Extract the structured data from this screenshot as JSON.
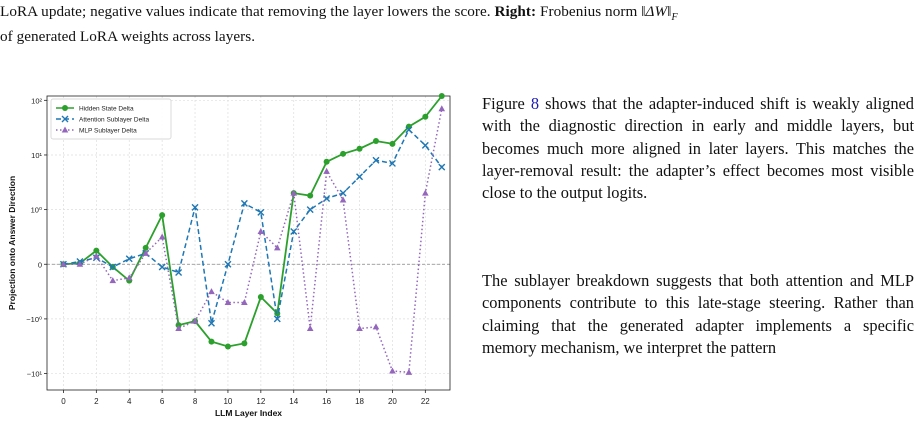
{
  "caption": {
    "line1_text": "LoRA update; negative values indicate that removing the layer lowers the score.",
    "right_label": "Right:",
    "line1_tail": "Frobenius norm",
    "norm_symbol": "‖ΔW‖",
    "norm_subscript": "F",
    "line2": "of generated LoRA weights across layers."
  },
  "body": {
    "para1_prefix": "Figure",
    "para1_ref": "8",
    "para1_rest": "shows that the adapter-induced shift is weakly aligned with the diagnostic direction in early and middle layers, but becomes much more aligned in later layers. This matches the layer-removal result: the adapter’s effect becomes most visible close to the output logits.",
    "para2": "The sublayer breakdown suggests that both attention and MLP components contribute to this late-stage steering. Rather than claiming that the generated adapter implements a specific memory mechanism, we interpret the pattern"
  },
  "colors": {
    "hidden": "#2ca02c",
    "attention": "#1f77b4",
    "mlp": "#9467bd"
  },
  "chart_data": {
    "type": "line",
    "xlabel": "LLM Layer Index",
    "ylabel": "Projection onto Answer Direction",
    "yscale": "symlog",
    "ylim": [
      -20,
      120
    ],
    "xlim": [
      -1,
      23.5
    ],
    "x_ticks": [
      0,
      2,
      4,
      6,
      8,
      10,
      12,
      14,
      16,
      18,
      20,
      22
    ],
    "y_ticks": [
      {
        "value": 100,
        "label": "10²"
      },
      {
        "value": 10,
        "label": "10¹"
      },
      {
        "value": 1,
        "label": "10⁰"
      },
      {
        "value": 0,
        "label": "0"
      },
      {
        "value": -1,
        "label": "−10⁰"
      },
      {
        "value": -10,
        "label": "−10¹"
      }
    ],
    "grid": true,
    "zero_line": true,
    "legend_position": "top-left",
    "x": [
      0,
      1,
      2,
      3,
      4,
      5,
      6,
      7,
      8,
      9,
      10,
      11,
      12,
      13,
      14,
      15,
      16,
      17,
      18,
      19,
      20,
      21,
      22,
      23
    ],
    "series": [
      {
        "name": "Hidden State Delta",
        "marker": "circle",
        "linestyle": "solid",
        "values": [
          0,
          0.02,
          0.25,
          -0.05,
          -0.3,
          0.3,
          0.9,
          -1.3,
          -1.1,
          -2.6,
          -3.2,
          -2.8,
          -0.6,
          -0.9,
          2.0,
          1.8,
          7.5,
          10.5,
          13,
          18,
          16,
          33,
          50,
          120
        ]
      },
      {
        "name": "Attention Sublayer Delta",
        "marker": "x",
        "linestyle": "dashed",
        "values": [
          0,
          0.05,
          0.12,
          -0.05,
          0.1,
          0.2,
          -0.05,
          -0.15,
          1.1,
          -1.2,
          0.0,
          1.3,
          0.95,
          -1.0,
          0.6,
          1.0,
          1.6,
          2.0,
          4.0,
          8.0,
          7.0,
          29,
          15,
          6.0
        ]
      },
      {
        "name": "MLP Sublayer Delta",
        "marker": "triangle",
        "linestyle": "dotted",
        "values": [
          0,
          0,
          0.15,
          -0.3,
          -0.25,
          0.2,
          0.5,
          -1.5,
          -1.1,
          -0.5,
          -0.7,
          -0.7,
          0.6,
          0.3,
          2.0,
          -1.5,
          5.0,
          1.5,
          -1.5,
          -1.4,
          -9.0,
          -9.5,
          2.0,
          70
        ]
      }
    ]
  }
}
